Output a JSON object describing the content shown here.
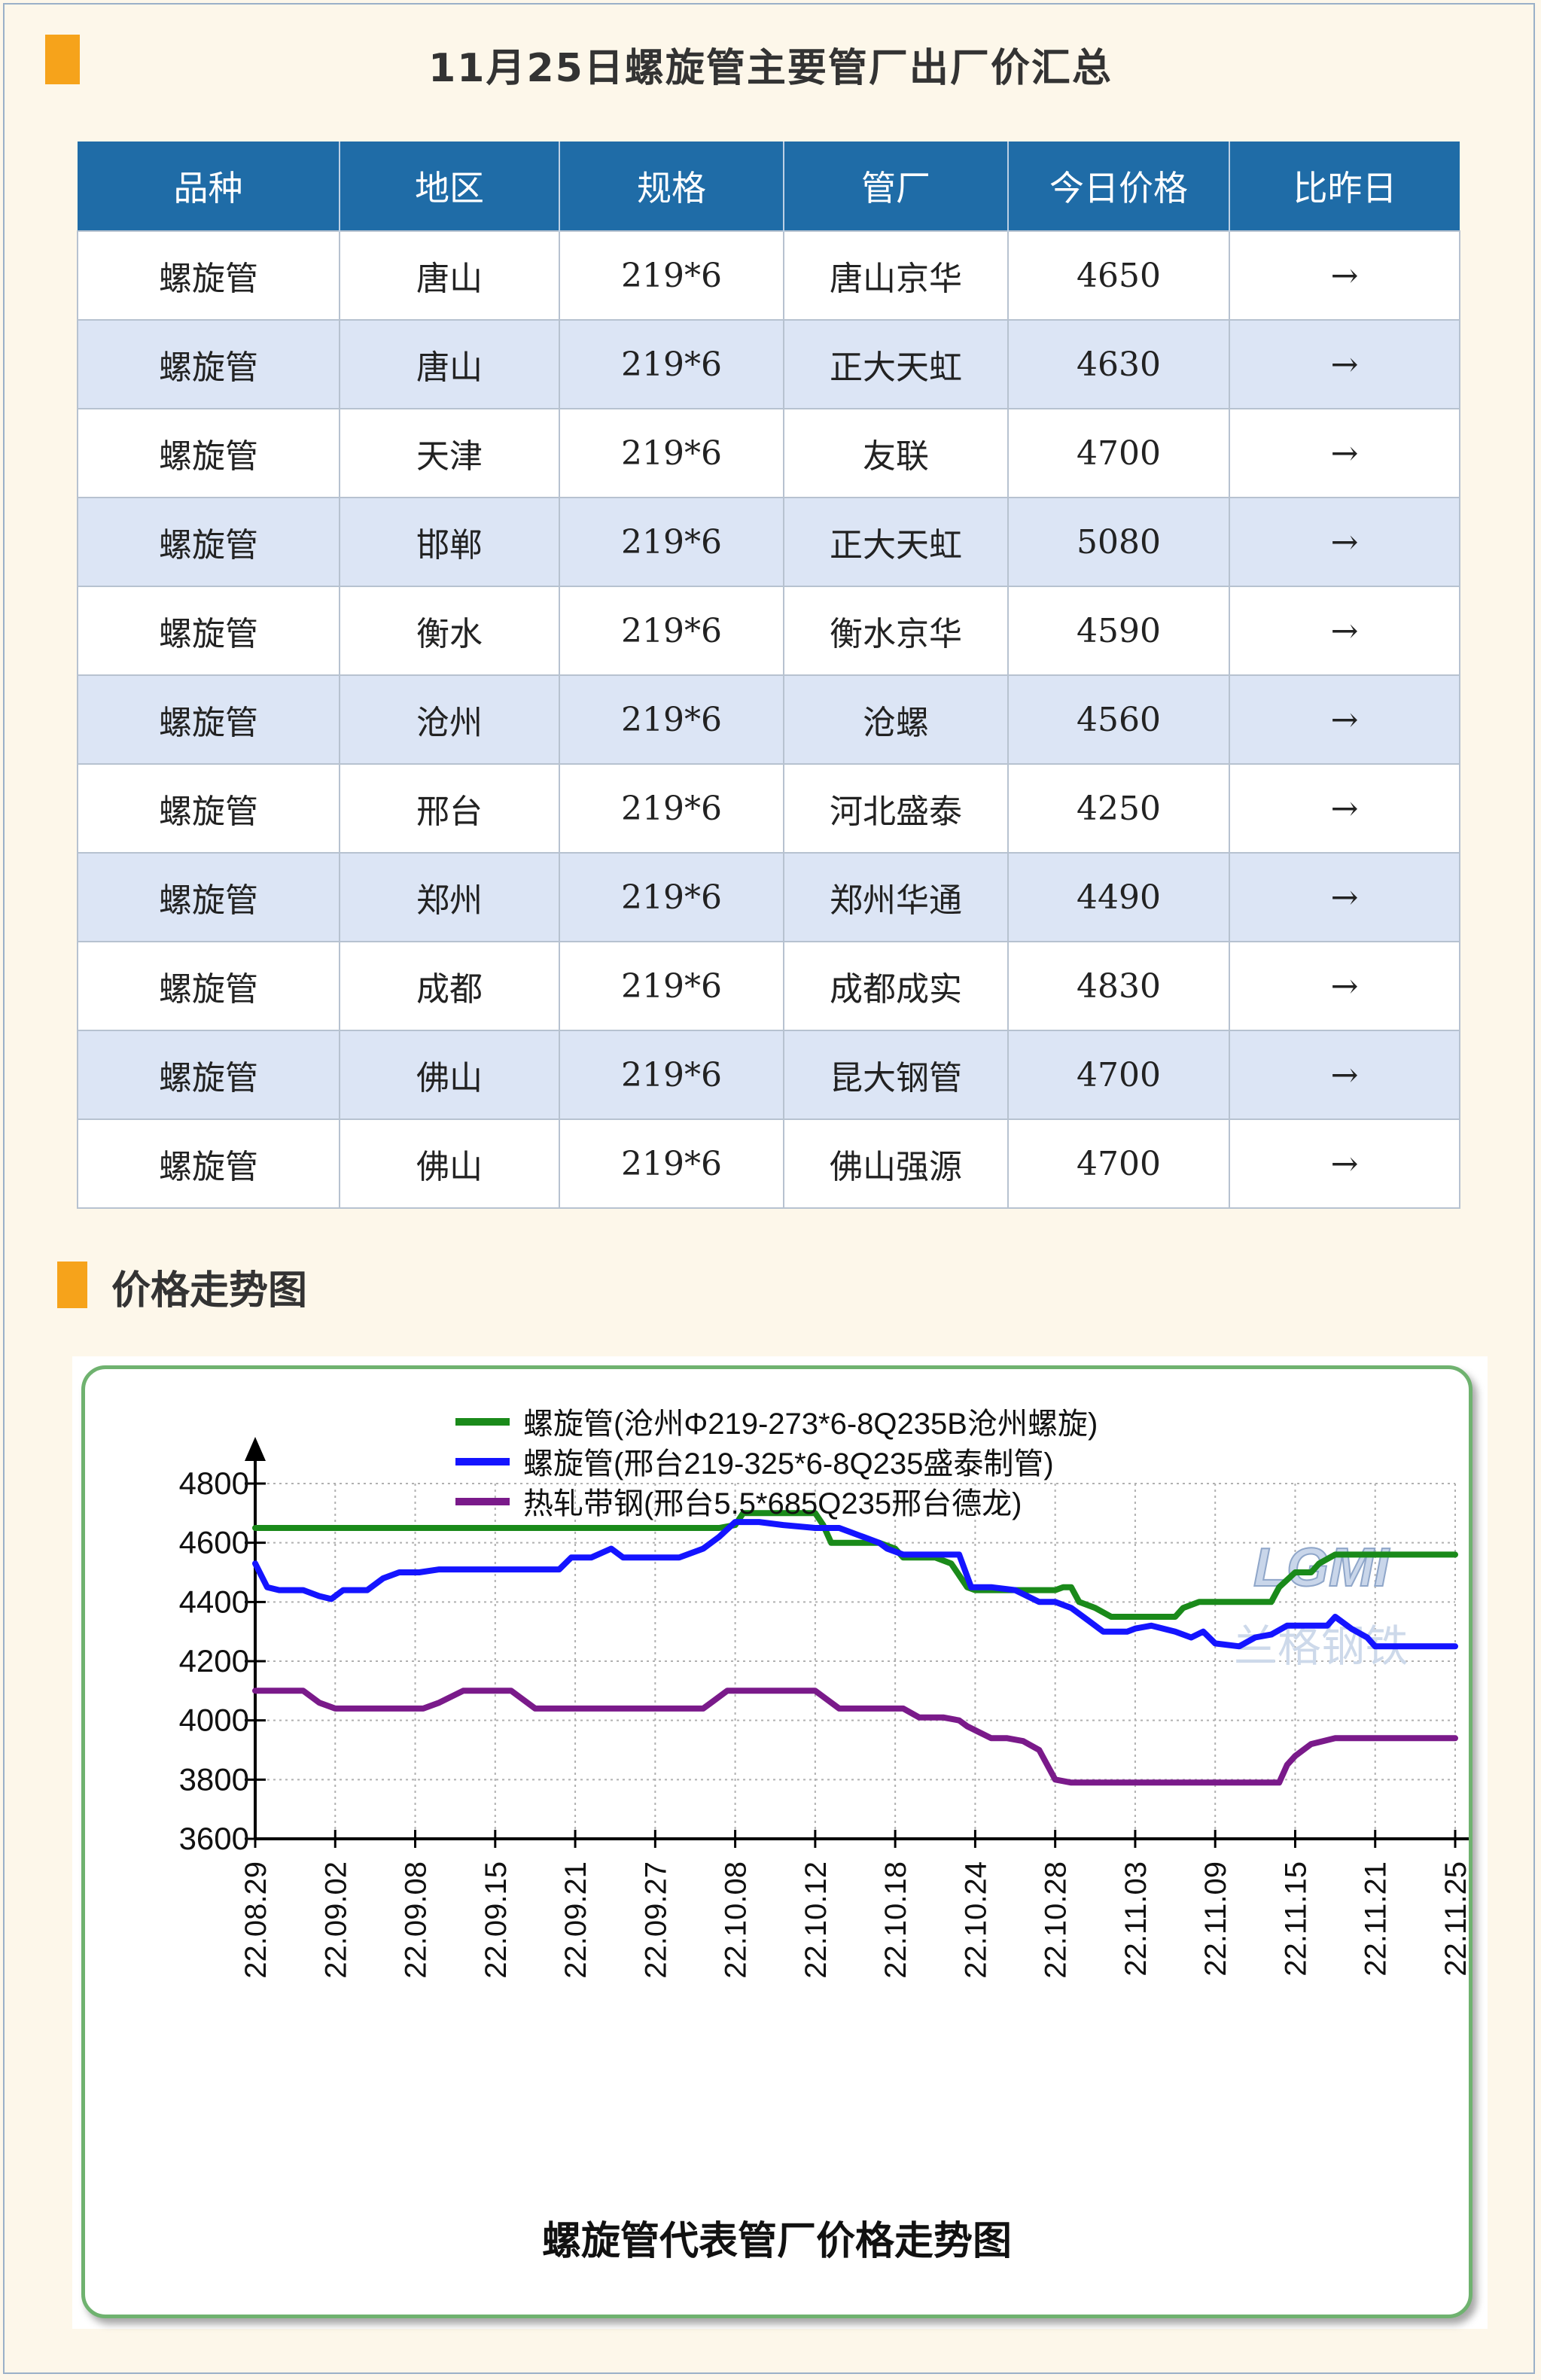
{
  "header": {
    "title": "11月25日螺旋管主要管厂出厂价汇总",
    "accent_color": "#f6a31b"
  },
  "table": {
    "columns": [
      "品种",
      "地区",
      "规格",
      "管厂",
      "今日价格",
      "比昨日"
    ],
    "rows": [
      [
        "螺旋管",
        "唐山",
        "219*6",
        "唐山京华",
        "4650",
        "→"
      ],
      [
        "螺旋管",
        "唐山",
        "219*6",
        "正大天虹",
        "4630",
        "→"
      ],
      [
        "螺旋管",
        "天津",
        "219*6",
        "友联",
        "4700",
        "→"
      ],
      [
        "螺旋管",
        "邯郸",
        "219*6",
        "正大天虹",
        "5080",
        "→"
      ],
      [
        "螺旋管",
        "衡水",
        "219*6",
        "衡水京华",
        "4590",
        "→"
      ],
      [
        "螺旋管",
        "沧州",
        "219*6",
        "沧螺",
        "4560",
        "→"
      ],
      [
        "螺旋管",
        "邢台",
        "219*6",
        "河北盛泰",
        "4250",
        "→"
      ],
      [
        "螺旋管",
        "郑州",
        "219*6",
        "郑州华通",
        "4490",
        "→"
      ],
      [
        "螺旋管",
        "成都",
        "219*6",
        "成都成实",
        "4830",
        "→"
      ],
      [
        "螺旋管",
        "佛山",
        "219*6",
        "昆大钢管",
        "4700",
        "→"
      ],
      [
        "螺旋管",
        "佛山",
        "219*6",
        "佛山强源",
        "4700",
        "→"
      ]
    ],
    "header_color": "#1f6ca7",
    "alt_row_color": "#dce5f5"
  },
  "trend_section": {
    "label": "价格走势图"
  },
  "chart_data": {
    "type": "line",
    "title": "螺旋管代表管厂价格走势图",
    "watermark": "LGMI 兰格钢铁",
    "legend_position": "top",
    "ylim": [
      3600,
      4800
    ],
    "yticks": [
      4800,
      4600,
      4400,
      4200,
      4000,
      3800,
      3600
    ],
    "xticks": [
      "22.08.29",
      "22.09.02",
      "22.09.08",
      "22.09.15",
      "22.09.21",
      "22.09.27",
      "22.10.08",
      "22.10.12",
      "22.10.18",
      "22.10.24",
      "22.10.28",
      "22.11.03",
      "22.11.09",
      "22.11.15",
      "22.11.21",
      "22.11.25"
    ],
    "grid": true,
    "series": [
      {
        "name": "螺旋管(沧州Φ219-273*6-8Q235B沧州螺旋)",
        "color": "#1a8a1a",
        "points": [
          [
            0,
            4650
          ],
          [
            0.25,
            4650
          ],
          [
            0.5,
            4650
          ],
          [
            1,
            4650
          ],
          [
            1.5,
            4650
          ],
          [
            2,
            4650
          ],
          [
            2.5,
            4650
          ],
          [
            3,
            4650
          ],
          [
            3.5,
            4650
          ],
          [
            4,
            4650
          ],
          [
            4.5,
            4650
          ],
          [
            5,
            4650
          ],
          [
            5.5,
            4650
          ],
          [
            5.8,
            4650
          ],
          [
            6,
            4660
          ],
          [
            6.1,
            4700
          ],
          [
            6.5,
            4700
          ],
          [
            7,
            4700
          ],
          [
            7.1,
            4660
          ],
          [
            7.2,
            4600
          ],
          [
            7.5,
            4600
          ],
          [
            7.8,
            4600
          ],
          [
            8,
            4580
          ],
          [
            8.1,
            4550
          ],
          [
            8.5,
            4550
          ],
          [
            8.7,
            4530
          ],
          [
            8.9,
            4450
          ],
          [
            9,
            4440
          ],
          [
            9.5,
            4440
          ],
          [
            10,
            4440
          ],
          [
            10.1,
            4450
          ],
          [
            10.2,
            4450
          ],
          [
            10.3,
            4400
          ],
          [
            10.5,
            4380
          ],
          [
            10.7,
            4350
          ],
          [
            11,
            4350
          ],
          [
            11.5,
            4350
          ],
          [
            11.6,
            4380
          ],
          [
            11.8,
            4400
          ],
          [
            12,
            4400
          ],
          [
            12.4,
            4400
          ],
          [
            12.5,
            4400
          ],
          [
            12.7,
            4400
          ],
          [
            12.8,
            4450
          ],
          [
            13,
            4500
          ],
          [
            13.2,
            4500
          ],
          [
            13.3,
            4530
          ],
          [
            13.5,
            4560
          ],
          [
            14,
            4560
          ],
          [
            14.5,
            4560
          ],
          [
            15,
            4560
          ]
        ]
      },
      {
        "name": "螺旋管(邢台219-325*6-8Q235盛泰制管)",
        "color": "#1414ff",
        "points": [
          [
            0,
            4530
          ],
          [
            0.15,
            4450
          ],
          [
            0.3,
            4440
          ],
          [
            0.6,
            4440
          ],
          [
            0.8,
            4420
          ],
          [
            0.95,
            4410
          ],
          [
            1.1,
            4440
          ],
          [
            1.4,
            4440
          ],
          [
            1.6,
            4480
          ],
          [
            1.8,
            4500
          ],
          [
            2.05,
            4500
          ],
          [
            2.3,
            4510
          ],
          [
            2.6,
            4510
          ],
          [
            3,
            4510
          ],
          [
            3.5,
            4510
          ],
          [
            3.8,
            4510
          ],
          [
            3.95,
            4550
          ],
          [
            4.2,
            4550
          ],
          [
            4.45,
            4580
          ],
          [
            4.6,
            4550
          ],
          [
            5,
            4550
          ],
          [
            5.3,
            4550
          ],
          [
            5.6,
            4580
          ],
          [
            5.8,
            4620
          ],
          [
            6,
            4670
          ],
          [
            6.3,
            4670
          ],
          [
            6.6,
            4660
          ],
          [
            7,
            4650
          ],
          [
            7.3,
            4650
          ],
          [
            7.6,
            4620
          ],
          [
            7.8,
            4600
          ],
          [
            7.9,
            4580
          ],
          [
            8.1,
            4560
          ],
          [
            8.5,
            4560
          ],
          [
            8.8,
            4560
          ],
          [
            8.95,
            4450
          ],
          [
            9.2,
            4450
          ],
          [
            9.5,
            4440
          ],
          [
            9.8,
            4400
          ],
          [
            10,
            4400
          ],
          [
            10.2,
            4380
          ],
          [
            10.4,
            4340
          ],
          [
            10.6,
            4300
          ],
          [
            10.9,
            4300
          ],
          [
            11,
            4310
          ],
          [
            11.2,
            4320
          ],
          [
            11.5,
            4300
          ],
          [
            11.7,
            4280
          ],
          [
            11.85,
            4300
          ],
          [
            12,
            4260
          ],
          [
            12.3,
            4250
          ],
          [
            12.5,
            4280
          ],
          [
            12.7,
            4290
          ],
          [
            12.9,
            4320
          ],
          [
            13.2,
            4320
          ],
          [
            13.4,
            4320
          ],
          [
            13.5,
            4350
          ],
          [
            13.7,
            4310
          ],
          [
            13.9,
            4280
          ],
          [
            14,
            4250
          ],
          [
            14.3,
            4250
          ],
          [
            15,
            4250
          ]
        ]
      },
      {
        "name": "热轧带钢(邢台5.5*685Q235邢台德龙)",
        "color": "#7a1a8a",
        "points": [
          [
            0,
            4100
          ],
          [
            0.2,
            4100
          ],
          [
            0.4,
            4100
          ],
          [
            0.6,
            4100
          ],
          [
            0.8,
            4060
          ],
          [
            1,
            4040
          ],
          [
            1.3,
            4040
          ],
          [
            1.6,
            4040
          ],
          [
            1.9,
            4040
          ],
          [
            2.1,
            4040
          ],
          [
            2.3,
            4060
          ],
          [
            2.6,
            4100
          ],
          [
            2.9,
            4100
          ],
          [
            3.2,
            4100
          ],
          [
            3.3,
            4080
          ],
          [
            3.5,
            4040
          ],
          [
            4,
            4040
          ],
          [
            4.5,
            4040
          ],
          [
            5,
            4040
          ],
          [
            5.6,
            4040
          ],
          [
            5.7,
            4060
          ],
          [
            5.9,
            4100
          ],
          [
            6.3,
            4100
          ],
          [
            6.6,
            4100
          ],
          [
            7,
            4100
          ],
          [
            7.1,
            4080
          ],
          [
            7.3,
            4040
          ],
          [
            7.6,
            4040
          ],
          [
            7.9,
            4040
          ],
          [
            8.1,
            4040
          ],
          [
            8.3,
            4010
          ],
          [
            8.6,
            4010
          ],
          [
            8.8,
            4000
          ],
          [
            8.9,
            3980
          ],
          [
            9.2,
            3940
          ],
          [
            9.4,
            3940
          ],
          [
            9.6,
            3930
          ],
          [
            9.8,
            3900
          ],
          [
            10,
            3800
          ],
          [
            10.2,
            3790
          ],
          [
            10.5,
            3790
          ],
          [
            11,
            3790
          ],
          [
            11.5,
            3790
          ],
          [
            12,
            3790
          ],
          [
            12.5,
            3790
          ],
          [
            12.8,
            3790
          ],
          [
            12.9,
            3850
          ],
          [
            13,
            3880
          ],
          [
            13.2,
            3920
          ],
          [
            13.5,
            3940
          ],
          [
            14,
            3940
          ],
          [
            14.5,
            3940
          ],
          [
            15,
            3940
          ]
        ]
      }
    ]
  }
}
